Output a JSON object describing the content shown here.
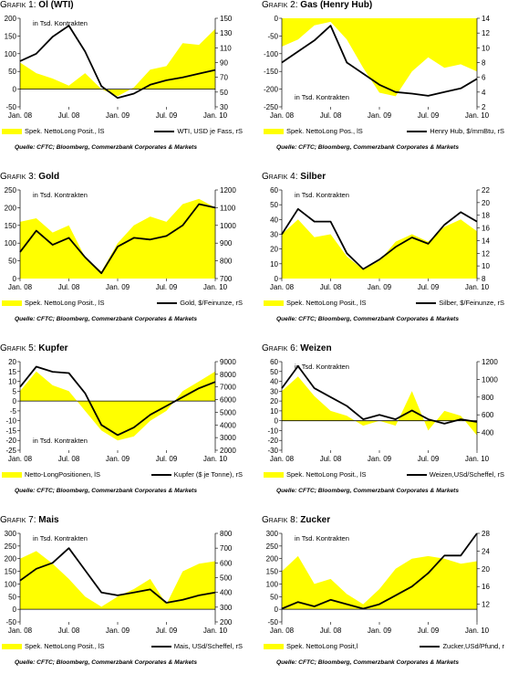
{
  "x_tick_labels": [
    "Jan. 08",
    "Jul. 08",
    "Jan. 09",
    "Jul. 09",
    "Jan. 10"
  ],
  "colors": {
    "fill": "#ffff00",
    "line": "#000000",
    "zero_line": "#000000"
  },
  "source": "Quelle: CFTC; Bloomberg, Commerzbank Corporates & Markets",
  "chart_data": [
    {
      "type": "area",
      "title_prefix": "Grafik 1:",
      "title": "Öl (WTI)",
      "annotation": "in Tsd. Kontrakten",
      "annotation_pos": "top",
      "left_ticks": [
        "200",
        "150",
        "100",
        "50",
        "0",
        "-50"
      ],
      "right_ticks": [
        "150",
        "130",
        "110",
        "90",
        "70",
        "50",
        "30"
      ],
      "ylim_left": [
        -50,
        200
      ],
      "ylim_right": [
        30,
        150
      ],
      "legend_fill": "Spek. NettoLong Posit., lS",
      "legend_line": "WTI, USD je Fass, rS",
      "x": [
        "2008-01",
        "2008-03",
        "2008-05",
        "2008-07",
        "2008-09",
        "2008-11",
        "2009-01",
        "2009-03",
        "2009-05",
        "2009-07",
        "2009-09",
        "2009-11",
        "2010-01"
      ],
      "series": [
        {
          "axis": "left",
          "kind": "area",
          "values": [
            75,
            45,
            30,
            10,
            45,
            0,
            -20,
            5,
            55,
            65,
            130,
            125,
            170
          ]
        },
        {
          "axis": "right",
          "kind": "line",
          "values": [
            92,
            102,
            125,
            140,
            105,
            58,
            42,
            48,
            60,
            66,
            70,
            75,
            80
          ]
        }
      ]
    },
    {
      "type": "area",
      "title_prefix": "Grafik 2:",
      "title": "Gas (Henry Hub)",
      "annotation": "in Tsd. Kontrakten",
      "annotation_pos": "bottom",
      "left_ticks": [
        "0",
        "-50",
        "-100",
        "-150",
        "-200",
        "-250"
      ],
      "right_ticks": [
        "14",
        "12",
        "10",
        "8",
        "6",
        "4",
        "2"
      ],
      "ylim_left": [
        -250,
        0
      ],
      "ylim_right": [
        2,
        14
      ],
      "legend_fill": "Spek. NettoLong Pos., lS",
      "legend_line": "Henry Hub, $/mmBtu, rS",
      "x": [
        "2008-01",
        "2008-03",
        "2008-05",
        "2008-07",
        "2008-09",
        "2008-11",
        "2009-01",
        "2009-03",
        "2009-05",
        "2009-07",
        "2009-09",
        "2009-11",
        "2010-01"
      ],
      "series": [
        {
          "axis": "left",
          "kind": "area",
          "values": [
            -80,
            -60,
            -20,
            -10,
            -60,
            -140,
            -210,
            -220,
            -150,
            -110,
            -140,
            -130,
            -150
          ]
        },
        {
          "axis": "right",
          "kind": "line",
          "values": [
            8,
            9.5,
            11,
            13,
            8,
            6.5,
            5,
            4,
            3.8,
            3.5,
            4,
            4.5,
            5.8
          ]
        }
      ]
    },
    {
      "type": "area",
      "title_prefix": "Grafik 3:",
      "title": "Gold",
      "annotation": "in Tsd. Kontrakten",
      "annotation_pos": "top",
      "left_ticks": [
        "250",
        "200",
        "150",
        "100",
        "50",
        "0"
      ],
      "right_ticks": [
        "1200",
        "1100",
        "1000",
        "900",
        "800",
        "700"
      ],
      "ylim_left": [
        0,
        250
      ],
      "ylim_right": [
        700,
        1200
      ],
      "legend_fill": "Spek. NettoLong Posit., lS",
      "legend_line": "Gold, $/Feinunze, rS",
      "x": [
        "2008-01",
        "2008-03",
        "2008-05",
        "2008-07",
        "2008-09",
        "2008-11",
        "2009-01",
        "2009-03",
        "2009-05",
        "2009-07",
        "2009-09",
        "2009-11",
        "2010-01"
      ],
      "series": [
        {
          "axis": "left",
          "kind": "area",
          "values": [
            160,
            170,
            130,
            150,
            60,
            20,
            100,
            150,
            175,
            160,
            210,
            225,
            200
          ]
        },
        {
          "axis": "right",
          "kind": "line",
          "values": [
            850,
            970,
            890,
            930,
            820,
            730,
            880,
            930,
            920,
            940,
            1000,
            1120,
            1100
          ]
        }
      ]
    },
    {
      "type": "area",
      "title_prefix": "Grafik 4:",
      "title": "Silber",
      "annotation": "in Tsd. Kontrakten",
      "annotation_pos": "top",
      "left_ticks": [
        "60",
        "50",
        "40",
        "30",
        "20",
        "10",
        "0"
      ],
      "right_ticks": [
        "22",
        "20",
        "18",
        "16",
        "14",
        "12",
        "10",
        "8"
      ],
      "ylim_left": [
        0,
        60
      ],
      "ylim_right": [
        8,
        22
      ],
      "legend_fill": "Spek. NettoLong Posit., lS",
      "legend_line": "Silber, $/Feinunze, rS",
      "x": [
        "2008-01",
        "2008-03",
        "2008-05",
        "2008-07",
        "2008-09",
        "2008-11",
        "2009-01",
        "2009-03",
        "2009-05",
        "2009-07",
        "2009-09",
        "2009-11",
        "2010-01"
      ],
      "series": [
        {
          "axis": "left",
          "kind": "area",
          "values": [
            30,
            40,
            28,
            30,
            15,
            6,
            12,
            25,
            30,
            25,
            35,
            40,
            32
          ]
        },
        {
          "axis": "right",
          "kind": "line",
          "values": [
            15,
            19,
            17,
            17,
            12,
            9.5,
            11,
            13,
            14.5,
            13.5,
            16.5,
            18.5,
            17
          ]
        }
      ]
    },
    {
      "type": "area",
      "title_prefix": "Grafik 5:",
      "title": "Kupfer",
      "annotation": "in Tsd. Kontrakten",
      "annotation_pos": "bottom",
      "left_ticks": [
        "20",
        "15",
        "10",
        "5",
        "0",
        "-5",
        "-10",
        "-15",
        "-20",
        "-25"
      ],
      "right_ticks": [
        "9000",
        "8000",
        "7000",
        "6000",
        "5000",
        "4000",
        "3000",
        "2000"
      ],
      "ylim_left": [
        -25,
        20
      ],
      "ylim_right": [
        2000,
        9000
      ],
      "legend_fill": "Netto-LongPositionen, lS",
      "legend_line": "Kupfer ($ je Tonne), rS",
      "x": [
        "2008-01",
        "2008-03",
        "2008-05",
        "2008-07",
        "2008-09",
        "2008-11",
        "2009-01",
        "2009-03",
        "2009-05",
        "2009-07",
        "2009-09",
        "2009-11",
        "2010-01"
      ],
      "series": [
        {
          "axis": "left",
          "kind": "area",
          "values": [
            5,
            15,
            8,
            5,
            -5,
            -15,
            -20,
            -18,
            -10,
            -5,
            5,
            10,
            15
          ]
        },
        {
          "axis": "right",
          "kind": "line",
          "values": [
            7000,
            8600,
            8200,
            8100,
            6500,
            4000,
            3200,
            3800,
            4800,
            5500,
            6200,
            6900,
            7400
          ]
        }
      ]
    },
    {
      "type": "area",
      "title_prefix": "Grafik 6:",
      "title": "Weizen",
      "annotation": "in Tsd. Kontrakten",
      "annotation_pos": "top",
      "left_ticks": [
        "60",
        "50",
        "40",
        "30",
        "20",
        "10",
        "0",
        "-10",
        "-20",
        "-30"
      ],
      "right_ticks": [
        "1200",
        "1000",
        "800",
        "600",
        "400"
      ],
      "ylim_left": [
        -30,
        60
      ],
      "ylim_right": [
        200,
        1200
      ],
      "legend_fill": "Spek. NettoLong Posit., lS",
      "legend_line": "Weizen,USd/Scheffel, rS",
      "x": [
        "2008-01",
        "2008-03",
        "2008-05",
        "2008-07",
        "2008-09",
        "2008-11",
        "2009-01",
        "2009-03",
        "2009-05",
        "2009-07",
        "2009-09",
        "2009-11",
        "2010-01"
      ],
      "series": [
        {
          "axis": "left",
          "kind": "area",
          "values": [
            30,
            45,
            25,
            10,
            5,
            -5,
            0,
            -5,
            30,
            -10,
            10,
            5,
            -15
          ]
        },
        {
          "axis": "right",
          "kind": "line",
          "values": [
            900,
            1150,
            900,
            800,
            700,
            550,
            600,
            550,
            650,
            550,
            500,
            550,
            520
          ]
        }
      ]
    },
    {
      "type": "area",
      "title_prefix": "Grafik 7:",
      "title": "Mais",
      "annotation": "in Tsd. Kontrakten",
      "annotation_pos": "top",
      "left_ticks": [
        "300",
        "250",
        "200",
        "150",
        "100",
        "50",
        "0",
        "-50"
      ],
      "right_ticks": [
        "800",
        "700",
        "600",
        "500",
        "400",
        "300",
        "200"
      ],
      "ylim_left": [
        -50,
        300
      ],
      "ylim_right": [
        200,
        800
      ],
      "legend_fill": "Spek. NettoLong Posit., lS",
      "legend_line": "Mais, USd/Scheffel, rS",
      "x": [
        "2008-01",
        "2008-03",
        "2008-05",
        "2008-07",
        "2008-09",
        "2008-11",
        "2009-01",
        "2009-03",
        "2009-05",
        "2009-07",
        "2009-09",
        "2009-11",
        "2010-01"
      ],
      "series": [
        {
          "axis": "left",
          "kind": "area",
          "values": [
            200,
            230,
            180,
            120,
            50,
            10,
            50,
            80,
            120,
            20,
            150,
            180,
            190
          ]
        },
        {
          "axis": "right",
          "kind": "line",
          "values": [
            480,
            560,
            600,
            700,
            550,
            400,
            380,
            400,
            420,
            330,
            350,
            380,
            400
          ]
        }
      ]
    },
    {
      "type": "area",
      "title_prefix": "Grafik 8:",
      "title": "Zucker",
      "annotation": "in Tsd. Kontrakten",
      "annotation_pos": "top",
      "left_ticks": [
        "300",
        "250",
        "200",
        "150",
        "100",
        "50",
        "0",
        "-50"
      ],
      "right_ticks": [
        "28",
        "24",
        "20",
        "16",
        "12"
      ],
      "ylim_left": [
        -50,
        300
      ],
      "ylim_right": [
        8,
        28
      ],
      "legend_fill": "Spek. NettoLong Posit,l",
      "legend_line": "Zucker,USd/Pfund, r",
      "x": [
        "2008-01",
        "2008-03",
        "2008-05",
        "2008-07",
        "2008-09",
        "2008-11",
        "2009-01",
        "2009-03",
        "2009-05",
        "2009-07",
        "2009-09",
        "2009-11",
        "2010-01"
      ],
      "series": [
        {
          "axis": "left",
          "kind": "area",
          "values": [
            150,
            210,
            100,
            120,
            60,
            20,
            80,
            160,
            200,
            210,
            200,
            180,
            190
          ]
        },
        {
          "axis": "right",
          "kind": "line",
          "values": [
            11,
            12.5,
            11.5,
            13,
            12,
            11,
            12,
            14,
            16,
            19,
            23,
            23,
            28
          ]
        }
      ]
    }
  ]
}
